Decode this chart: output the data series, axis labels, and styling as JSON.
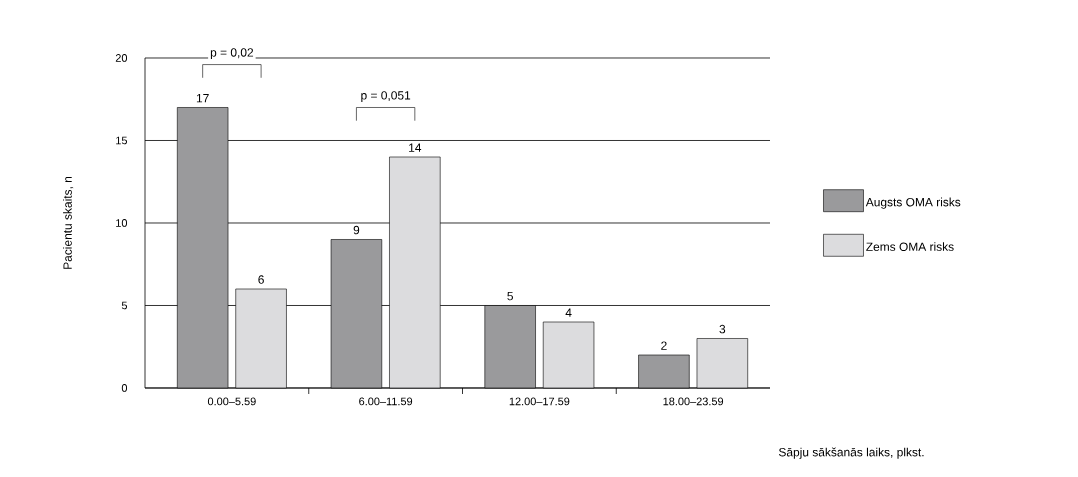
{
  "chart_data": {
    "type": "bar",
    "xlabel": "Sāpju sākšanās laiks, plkst.",
    "ylabel": "Pacientu skaits, n",
    "categories": [
      "0.00–5.59",
      "6.00–11.59",
      "12.00–17.59",
      "18.00–23.59"
    ],
    "series": [
      {
        "name": "Augsts OMA risks",
        "color": "#9a9a9c",
        "values": [
          17,
          9,
          5,
          2
        ]
      },
      {
        "name": "Zems OMA risks",
        "color": "#dcdcde",
        "values": [
          6,
          14,
          4,
          3
        ]
      }
    ],
    "ylim": [
      0,
      20
    ],
    "yticks": [
      0,
      5,
      10,
      15,
      20
    ],
    "grid": "y",
    "legend": "right",
    "data_labels": true,
    "annotations": [
      "p = 0,02",
      "p = 0,051"
    ]
  }
}
